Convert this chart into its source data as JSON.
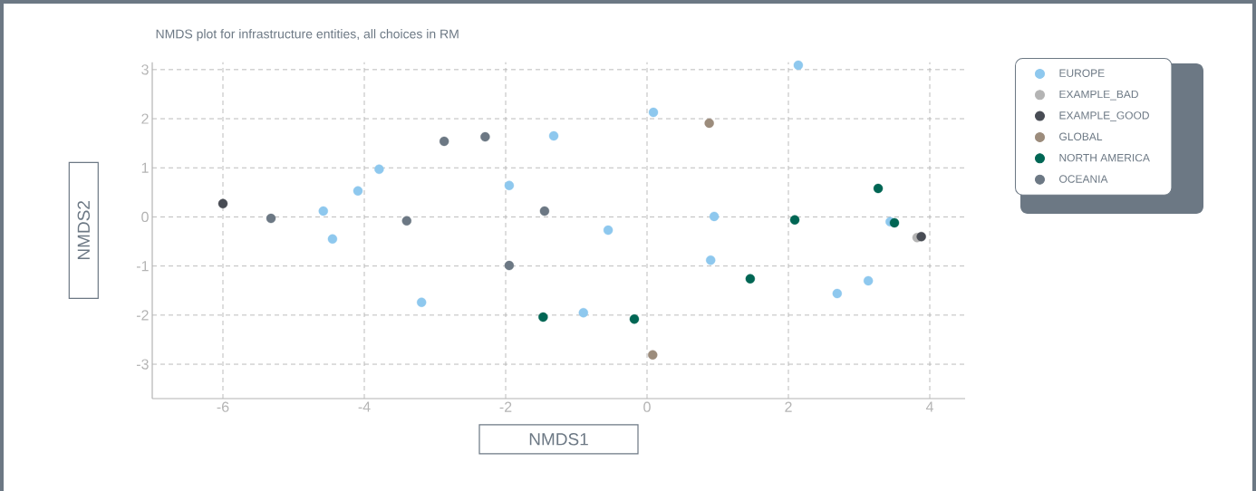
{
  "chart_data": {
    "type": "scatter",
    "title": "NMDS plot for infrastructure entities, all choices in RM",
    "xlabel": "NMDS1",
    "ylabel": "NMDS2",
    "xlim": [
      -7,
      4.5
    ],
    "ylim": [
      -3.7,
      3.15
    ],
    "xticks": [
      -6,
      -4,
      -2,
      0,
      2,
      4
    ],
    "yticks": [
      -3,
      -2,
      -1,
      0,
      1,
      2,
      3
    ],
    "grid": true,
    "legend": "top right",
    "series": [
      {
        "name": "EUROPE",
        "color": "#8ec8ee",
        "x": [
          2.14,
          0.09,
          -1.32,
          -3.79,
          -4.09,
          -1.95,
          -4.58,
          -4.45,
          -0.55,
          0.95,
          0.9,
          -3.19,
          -0.9,
          2.69,
          3.13,
          3.44
        ],
        "values": [
          3.09,
          2.13,
          1.65,
          0.97,
          0.53,
          0.64,
          0.12,
          -0.45,
          -0.27,
          0.01,
          -0.88,
          -1.74,
          -1.95,
          -1.56,
          -1.3,
          -0.1
        ]
      },
      {
        "name": "EXAMPLE_BAD",
        "color": "#b4b4b4",
        "x": [
          3.82
        ],
        "values": [
          -0.42
        ]
      },
      {
        "name": "EXAMPLE_GOOD",
        "color": "#484c54",
        "x": [
          -6,
          3.88
        ],
        "values": [
          0.27,
          -0.4
        ]
      },
      {
        "name": "GLOBAL",
        "color": "#9c8c7c",
        "x": [
          0.88,
          0.08
        ],
        "values": [
          1.91,
          -2.81
        ]
      },
      {
        "name": "NORTH AMERICA",
        "color": "#006654",
        "x": [
          3.27,
          2.09,
          3.5,
          1.46,
          -0.18,
          -1.47
        ],
        "values": [
          0.58,
          -0.06,
          -0.12,
          -1.26,
          -2.08,
          -2.04
        ]
      },
      {
        "name": "OCEANIA",
        "color": "#6c7884",
        "x": [
          -5.32,
          -3.4,
          -2.87,
          -2.29,
          -1.45,
          -1.95
        ],
        "values": [
          -0.03,
          -0.08,
          1.54,
          1.63,
          0.12,
          -0.99
        ]
      }
    ]
  }
}
